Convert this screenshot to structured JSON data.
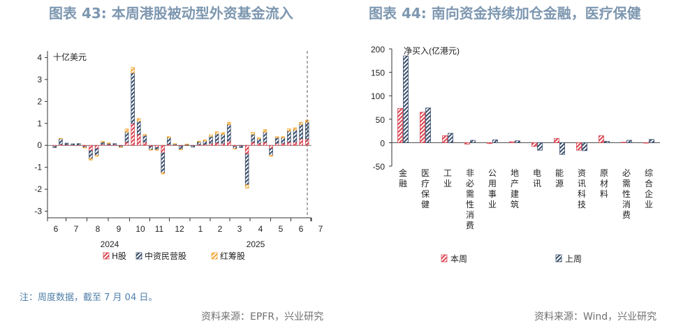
{
  "left_title": "图表 43: 本周港股被动型外资基金流入",
  "right_title": "图表 44: 南向资金持续加仓金融，医疗保健",
  "note": "注：周度数据，截至 7 月 04 日。",
  "left_source": "资料来源：EPFR，兴业研究",
  "right_source": "资料来源：Wind，兴业研究",
  "colors": {
    "h_share": "#d9434f",
    "mid_private": "#394d6b",
    "red_chip": "#f2a93b"
  },
  "chart_data": [
    {
      "type": "bar",
      "stacked": true,
      "unit_label": "十亿美元",
      "ylim": [
        -3.3,
        4.3
      ],
      "yticks": [
        -3,
        -2,
        -1,
        0,
        1,
        2,
        3,
        4
      ],
      "month_labels": [
        "6",
        "7",
        "8",
        "9",
        "10",
        "11",
        "12",
        "1",
        "2",
        "3",
        "4",
        "5",
        "6",
        "7"
      ],
      "year_labels": [
        "2024",
        "2025"
      ],
      "legend_position": "bottom",
      "series": [
        {
          "name": "H股",
          "values": [
            -0.05,
            0.05,
            0.03,
            0.02,
            0.02,
            -0.05,
            -0.25,
            -0.15,
            0.05,
            0.04,
            0.03,
            -0.03,
            0.15,
            1.0,
            0.5,
            0.15,
            -0.05,
            -0.1,
            -0.35,
            0.05,
            0.02,
            -0.03,
            0.01,
            -0.02,
            0.04,
            0.05,
            0.1,
            0.12,
            0.1,
            0.2,
            -0.05,
            -0.02,
            -0.4,
            0.15,
            0.1,
            0.15,
            -0.15,
            0.1,
            0.1,
            0.15,
            0.15,
            0.3,
            0.3
          ]
        },
        {
          "name": "中资民营股",
          "values": [
            -0.05,
            0.25,
            0.07,
            0.05,
            0.06,
            -0.05,
            -0.35,
            -0.3,
            0.1,
            0.05,
            0.05,
            -0.05,
            0.45,
            2.3,
            0.6,
            0.3,
            -0.15,
            -0.1,
            -0.9,
            0.3,
            0.05,
            -0.15,
            0.04,
            -0.06,
            0.12,
            0.15,
            0.3,
            0.4,
            0.4,
            0.75,
            -0.1,
            -0.08,
            -1.4,
            0.35,
            0.2,
            0.45,
            -0.3,
            0.25,
            0.25,
            0.5,
            0.55,
            0.65,
            0.75
          ]
        },
        {
          "name": "红筹股",
          "values": [
            0.0,
            0.02,
            0.0,
            0.0,
            0.0,
            -0.02,
            -0.07,
            -0.05,
            0.03,
            0.02,
            0.0,
            -0.01,
            0.15,
            0.25,
            0.12,
            0.05,
            -0.01,
            -0.02,
            -0.05,
            0.05,
            0.01,
            -0.02,
            0.01,
            0.0,
            0.03,
            0.05,
            0.08,
            0.1,
            0.08,
            0.1,
            -0.01,
            0.0,
            -0.15,
            0.1,
            0.05,
            0.12,
            -0.05,
            0.05,
            0.05,
            0.1,
            0.1,
            0.1,
            0.1
          ]
        }
      ]
    },
    {
      "type": "bar",
      "unit_label": "净买入(亿港元)",
      "ylim": [
        -50,
        200
      ],
      "yticks": [
        -50,
        0,
        50,
        100,
        150,
        200
      ],
      "categories": [
        "金融",
        "医疗保健",
        "工业",
        "非必需性消费",
        "公用事业",
        "地产建筑",
        "电讯",
        "能源",
        "资讯科技",
        "原材料",
        "必需性消费",
        "综合企业"
      ],
      "legend_position": "bottom",
      "series": [
        {
          "name": "本周",
          "values": [
            73,
            65,
            15,
            -3,
            -2,
            2,
            -8,
            9,
            -16,
            15,
            1,
            -1
          ]
        },
        {
          "name": "上周",
          "values": [
            185,
            74,
            20,
            5,
            6,
            4,
            -16,
            -25,
            -17,
            3,
            5,
            7
          ]
        }
      ]
    }
  ]
}
